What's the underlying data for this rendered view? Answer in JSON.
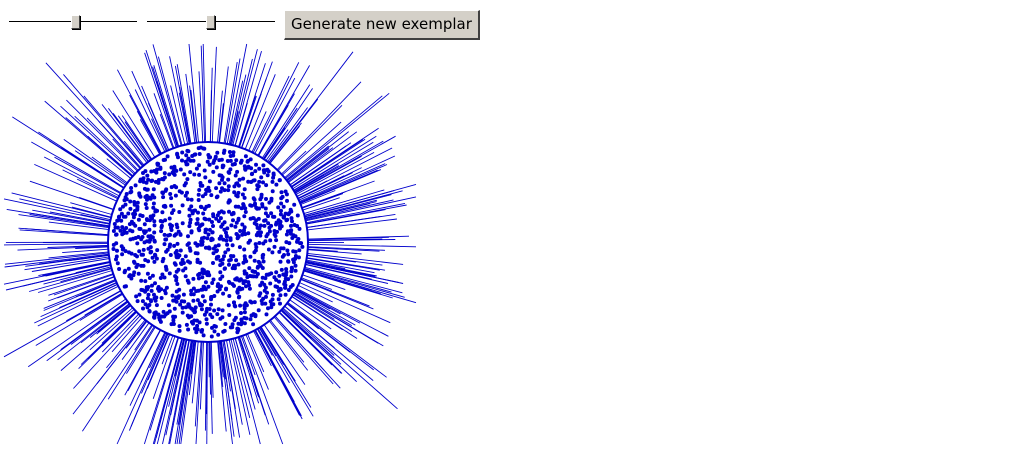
{
  "controls": {
    "slider_1": {
      "value": 0.52
    },
    "slider_2": {
      "value": 0.5
    },
    "button_label": "Generate new exemplar"
  },
  "visual": {
    "shape": "disk with radial spikes",
    "dot_count": 1100,
    "spike_count": 420,
    "stroke_color": "#0000cc",
    "dot_color": "#0000cc",
    "background_color": "#ffffff"
  }
}
